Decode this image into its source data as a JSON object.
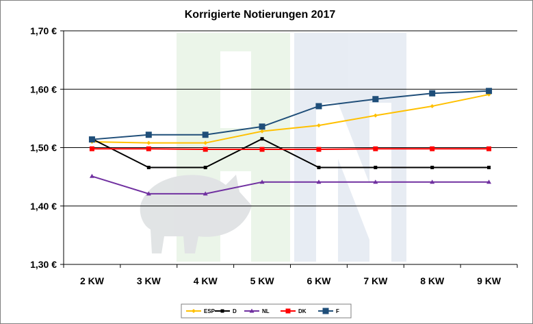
{
  "chart_data": {
    "type": "line",
    "title": "Korrigierte Notierungen 2017",
    "categories": [
      "2 KW",
      "3 KW",
      "4 KW",
      "5 KW",
      "6 KW",
      "7 KW",
      "8 KW",
      "9 KW"
    ],
    "y_ticks": [
      "1,70 €",
      "1,60 €",
      "1,50 €",
      "1,40 €",
      "1,30 €"
    ],
    "y_tick_values": [
      1.7,
      1.6,
      1.5,
      1.4,
      1.3
    ],
    "ylim": [
      1.3,
      1.7
    ],
    "grid": true,
    "legend_position": "bottom",
    "series": [
      {
        "name": "ESP",
        "color": "#FFC000",
        "marker": "diamond",
        "values": [
          1.51,
          1.508,
          1.508,
          1.528,
          1.538,
          1.555,
          1.571,
          1.591
        ]
      },
      {
        "name": "D",
        "color": "#000000",
        "marker": "square-small",
        "values": [
          1.515,
          1.466,
          1.466,
          1.515,
          1.466,
          1.466,
          1.466,
          1.466
        ]
      },
      {
        "name": "NL",
        "color": "#7030A0",
        "marker": "triangle",
        "values": [
          1.451,
          1.421,
          1.421,
          1.441,
          1.441,
          1.441,
          1.441,
          1.441
        ]
      },
      {
        "name": "DK",
        "color": "#FF0000",
        "marker": "square",
        "values": [
          1.498,
          1.498,
          1.497,
          1.497,
          1.497,
          1.498,
          1.498,
          1.498
        ]
      },
      {
        "name": "F",
        "color": "#1F4E79",
        "marker": "square-large",
        "values": [
          1.514,
          1.522,
          1.522,
          1.536,
          1.571,
          1.583,
          1.593,
          1.597
        ]
      }
    ]
  }
}
